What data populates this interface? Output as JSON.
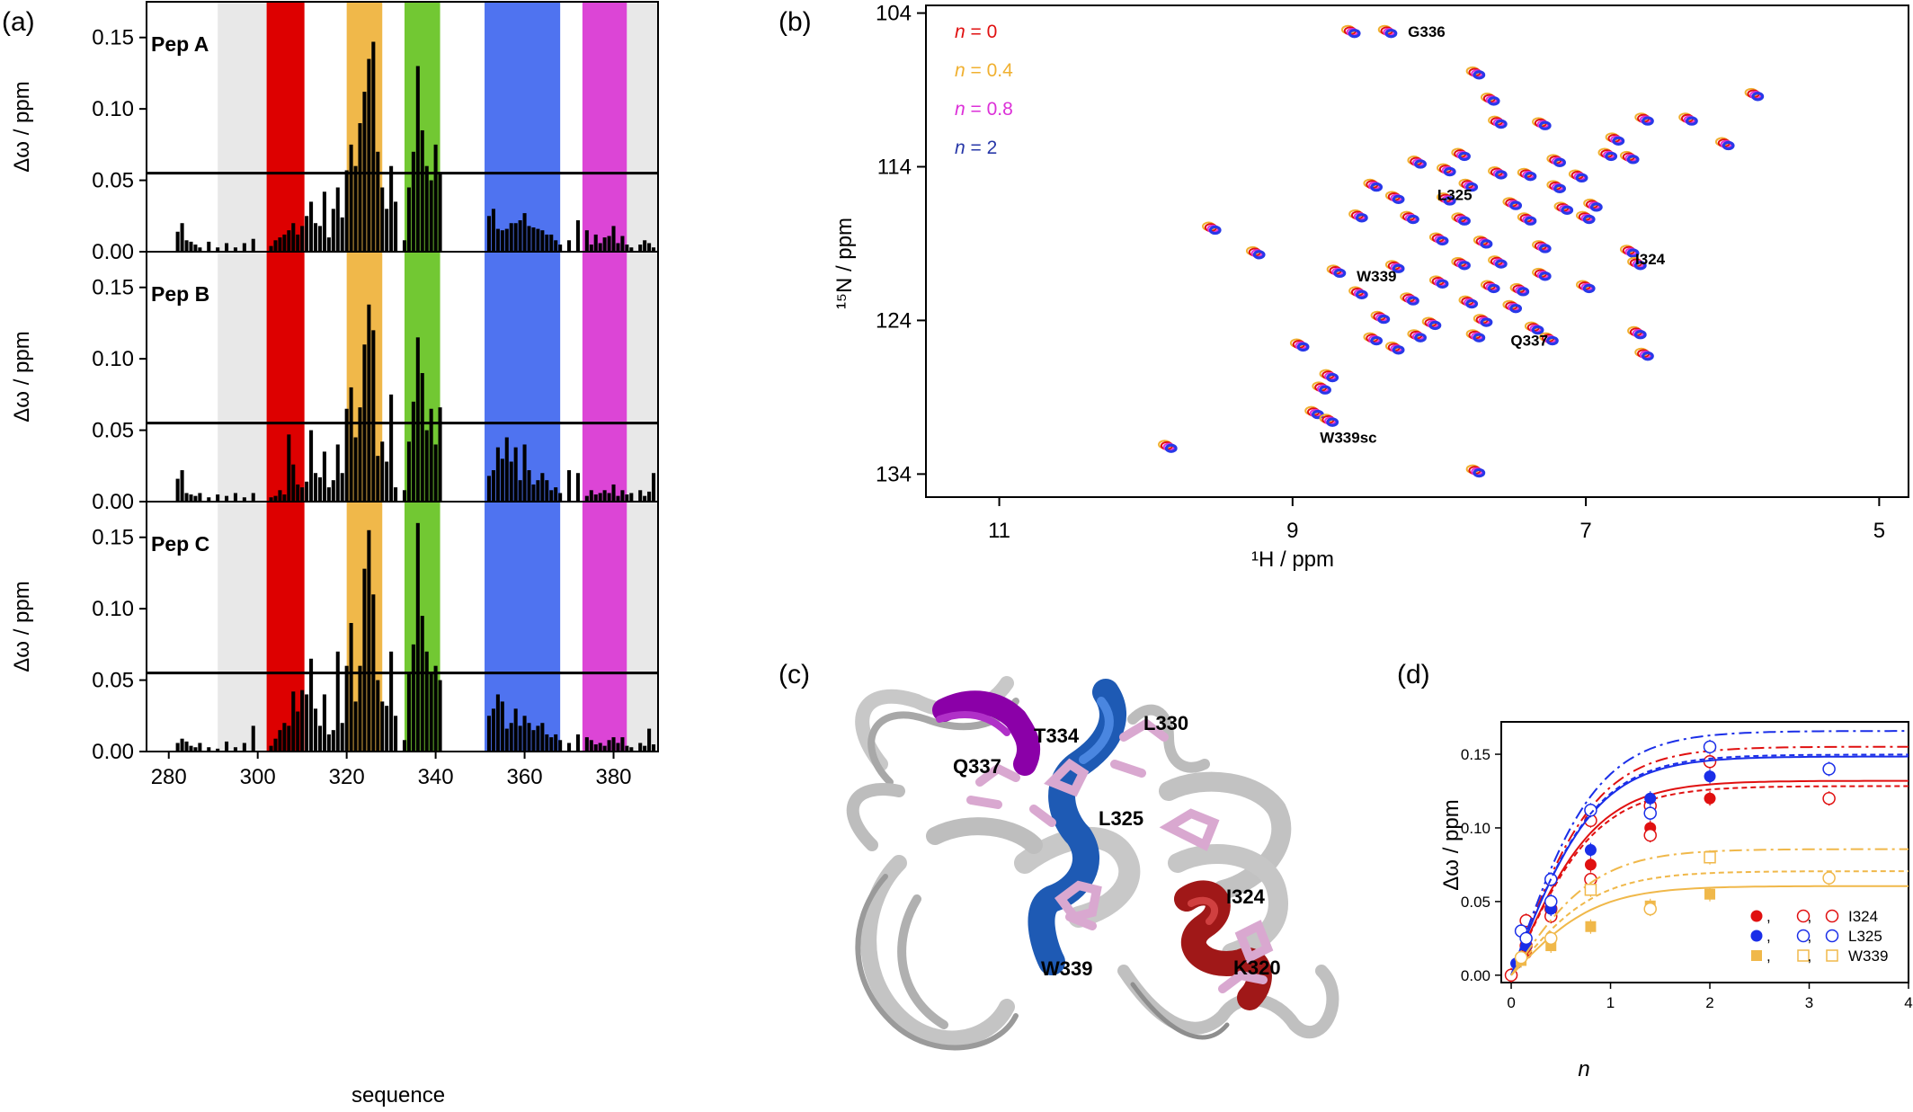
{
  "panels": {
    "a": "(a)",
    "b": "(b)",
    "c": "(c)",
    "d": "(d)"
  },
  "chart_data": [
    {
      "id": "a",
      "type": "bar",
      "xlabel": "sequence",
      "ylabel": "Δω / ppm",
      "xlim": [
        275,
        390
      ],
      "ylim": [
        0,
        0.175
      ],
      "xticks": [
        "280",
        "300",
        "320",
        "340",
        "360",
        "380"
      ],
      "yticks": [
        "0.00",
        "0.05",
        "0.10",
        "0.15"
      ],
      "threshold": 0.055,
      "region_colors": [
        "#e8e8e8",
        "#dd0000",
        "#f0b84a",
        "#72c833",
        "#4f73f0",
        "#dc45d6",
        "#e8e8e8"
      ],
      "regions": [
        [
          291,
          302
        ],
        [
          302,
          310.5
        ],
        [
          320,
          328
        ],
        [
          333,
          341
        ],
        [
          351,
          368
        ],
        [
          373,
          383
        ],
        [
          383,
          390
        ]
      ],
      "x": [
        282,
        283,
        284,
        285,
        286,
        287,
        289,
        291,
        293,
        295,
        297,
        299,
        303,
        304,
        305,
        306,
        307,
        308,
        309,
        310,
        311,
        312,
        313,
        314,
        315,
        316,
        317,
        318,
        319,
        320,
        321,
        322,
        323,
        324,
        325,
        326,
        327,
        328,
        329,
        330,
        331,
        333,
        334,
        335,
        336,
        337,
        338,
        339,
        340,
        341,
        352,
        353,
        354,
        355,
        356,
        357,
        358,
        359,
        360,
        361,
        362,
        363,
        364,
        365,
        366,
        367,
        368,
        370,
        372,
        374,
        375,
        376,
        377,
        378,
        379,
        380,
        381,
        382,
        383,
        384,
        386,
        387,
        388,
        389
      ],
      "subplots": [
        {
          "label": "Pep A",
          "values": [
            0.014,
            0.02,
            0.008,
            0.007,
            0.005,
            0.003,
            0.007,
            0.003,
            0.006,
            0.003,
            0.006,
            0.009,
            0.004,
            0.008,
            0.01,
            0.012,
            0.015,
            0.02,
            0.012,
            0.018,
            0.025,
            0.035,
            0.02,
            0.018,
            0.042,
            0.01,
            0.03,
            0.045,
            0.024,
            0.057,
            0.075,
            0.06,
            0.09,
            0.112,
            0.135,
            0.147,
            0.07,
            0.045,
            0.03,
            0.06,
            0.035,
            0.008,
            0.045,
            0.07,
            0.13,
            0.085,
            0.06,
            0.05,
            0.075,
            0.055,
            0.025,
            0.03,
            0.016,
            0.015,
            0.016,
            0.02,
            0.02,
            0.022,
            0.027,
            0.018,
            0.017,
            0.016,
            0.015,
            0.012,
            0.012,
            0.008,
            0.005,
            0.008,
            0.022,
            0.015,
            0.005,
            0.012,
            0.006,
            0.01,
            0.011,
            0.018,
            0.006,
            0.011,
            0.005,
            0.003,
            0.005,
            0.008,
            0.006,
            0.003
          ]
        },
        {
          "label": "Pep B",
          "values": [
            0.016,
            0.022,
            0.006,
            0.005,
            0.004,
            0.006,
            0.003,
            0.005,
            0.004,
            0.006,
            0.003,
            0.006,
            0.003,
            0.004,
            0.008,
            0.005,
            0.047,
            0.026,
            0.012,
            0.01,
            0.014,
            0.05,
            0.02,
            0.017,
            0.035,
            0.01,
            0.015,
            0.04,
            0.02,
            0.065,
            0.08,
            0.045,
            0.066,
            0.11,
            0.138,
            0.12,
            0.032,
            0.042,
            0.028,
            0.075,
            0.01,
            0.008,
            0.042,
            0.07,
            0.115,
            0.09,
            0.05,
            0.065,
            0.04,
            0.066,
            0.018,
            0.022,
            0.038,
            0.03,
            0.045,
            0.028,
            0.038,
            0.015,
            0.04,
            0.022,
            0.012,
            0.015,
            0.02,
            0.015,
            0.008,
            0.01,
            0.006,
            0.022,
            0.02,
            0.004,
            0.008,
            0.005,
            0.006,
            0.008,
            0.006,
            0.012,
            0.004,
            0.008,
            0.005,
            0.006,
            0.008,
            0.004,
            0.007,
            0.02
          ]
        },
        {
          "label": "Pep C",
          "values": [
            0.006,
            0.009,
            0.007,
            0.004,
            0.003,
            0.006,
            0.003,
            0.002,
            0.007,
            0.003,
            0.006,
            0.018,
            0.004,
            0.009,
            0.015,
            0.02,
            0.018,
            0.042,
            0.028,
            0.043,
            0.04,
            0.065,
            0.03,
            0.018,
            0.04,
            0.012,
            0.015,
            0.07,
            0.02,
            0.06,
            0.09,
            0.035,
            0.06,
            0.128,
            0.155,
            0.11,
            0.05,
            0.035,
            0.032,
            0.07,
            0.025,
            0.008,
            0.055,
            0.075,
            0.16,
            0.095,
            0.07,
            0.055,
            0.06,
            0.05,
            0.025,
            0.03,
            0.04,
            0.035,
            0.016,
            0.02,
            0.03,
            0.018,
            0.025,
            0.02,
            0.015,
            0.018,
            0.02,
            0.012,
            0.01,
            0.012,
            0.008,
            0.006,
            0.012,
            0.01,
            0.008,
            0.005,
            0.006,
            0.004,
            0.008,
            0.01,
            0.006,
            0.01,
            0.004,
            0.003,
            0.006,
            0.004,
            0.016,
            0.005
          ]
        }
      ]
    },
    {
      "id": "b",
      "type": "scatter",
      "xlabel": "¹H / ppm",
      "ylabel": "¹⁵N / ppm",
      "xlim": [
        11.5,
        4.8
      ],
      "ylim": [
        135.5,
        103.5
      ],
      "xticks": [
        "11",
        "9",
        "7",
        "5"
      ],
      "yticks": [
        "104",
        "114",
        "124",
        "134"
      ],
      "legend": [
        {
          "n": "n",
          "value": " = 0",
          "color": "#e01010"
        },
        {
          "n": "n",
          "value": " = 0.4",
          "color": "#f0b030"
        },
        {
          "n": "n",
          "value": " = 0.8",
          "color": "#dc30d8"
        },
        {
          "n": "n",
          "value": " = 2",
          "color": "#2838a8"
        }
      ],
      "series_colors": [
        "#f0b030",
        "#e01010",
        "#dc30d8",
        "#2838e8"
      ],
      "labels": [
        {
          "text": "G336",
          "h": 8.25,
          "n": 105.2
        },
        {
          "text": "L325",
          "h": 8.05,
          "n": 115.8
        },
        {
          "text": "I324",
          "h": 6.7,
          "n": 120.0
        },
        {
          "text": "W339",
          "h": 8.6,
          "n": 121.1
        },
        {
          "text": "Q337",
          "h": 7.55,
          "n": 125.3
        },
        {
          "text": "W339sc",
          "h": 8.85,
          "n": 131.6
        }
      ],
      "peaks": [
        [
          8.35,
          105.2
        ],
        [
          8.6,
          105.2
        ],
        [
          7.75,
          107.9
        ],
        [
          5.85,
          109.3
        ],
        [
          7.65,
          109.6
        ],
        [
          7.6,
          111.1
        ],
        [
          7.3,
          111.2
        ],
        [
          6.6,
          110.9
        ],
        [
          6.3,
          110.9
        ],
        [
          6.8,
          112.2
        ],
        [
          6.05,
          112.5
        ],
        [
          7.85,
          113.2
        ],
        [
          7.2,
          113.6
        ],
        [
          6.85,
          113.2
        ],
        [
          6.7,
          113.4
        ],
        [
          8.15,
          113.7
        ],
        [
          7.95,
          114.2
        ],
        [
          7.6,
          114.4
        ],
        [
          7.4,
          114.5
        ],
        [
          7.05,
          114.6
        ],
        [
          8.45,
          115.2
        ],
        [
          7.8,
          115.2
        ],
        [
          7.2,
          115.3
        ],
        [
          8.3,
          116.0
        ],
        [
          7.95,
          116.1
        ],
        [
          7.5,
          116.4
        ],
        [
          7.15,
          116.7
        ],
        [
          6.95,
          116.5
        ],
        [
          8.55,
          117.2
        ],
        [
          8.2,
          117.3
        ],
        [
          7.85,
          117.4
        ],
        [
          7.4,
          117.4
        ],
        [
          7.0,
          117.3
        ],
        [
          8.0,
          118.7
        ],
        [
          7.7,
          118.9
        ],
        [
          7.3,
          119.2
        ],
        [
          6.7,
          119.5
        ],
        [
          6.65,
          120.3
        ],
        [
          9.55,
          118.0
        ],
        [
          9.25,
          119.6
        ],
        [
          8.7,
          120.8
        ],
        [
          8.3,
          120.5
        ],
        [
          7.85,
          120.3
        ],
        [
          7.6,
          120.2
        ],
        [
          7.3,
          121.0
        ],
        [
          8.0,
          121.5
        ],
        [
          7.65,
          121.8
        ],
        [
          7.45,
          122.0
        ],
        [
          7.0,
          121.8
        ],
        [
          8.55,
          122.2
        ],
        [
          8.2,
          122.6
        ],
        [
          7.8,
          122.8
        ],
        [
          7.5,
          123.1
        ],
        [
          8.4,
          123.8
        ],
        [
          8.05,
          124.2
        ],
        [
          7.7,
          124.0
        ],
        [
          7.35,
          124.5
        ],
        [
          8.15,
          125.0
        ],
        [
          7.75,
          125.0
        ],
        [
          8.45,
          125.2
        ],
        [
          7.25,
          125.2
        ],
        [
          6.65,
          124.8
        ],
        [
          8.3,
          125.8
        ],
        [
          8.95,
          125.6
        ],
        [
          6.6,
          126.2
        ],
        [
          8.75,
          127.6
        ],
        [
          8.8,
          128.4
        ],
        [
          8.85,
          130.0
        ],
        [
          8.75,
          130.5
        ],
        [
          9.85,
          132.2
        ],
        [
          7.75,
          133.8
        ]
      ]
    },
    {
      "id": "c",
      "type": "other",
      "residues": [
        "T334",
        "L330",
        "Q337",
        "L325",
        "I324",
        "K320",
        "W339"
      ]
    },
    {
      "id": "d",
      "type": "scatter",
      "xlabel": "n",
      "ylabel": "Δω / ppm",
      "xlim": [
        -0.1,
        4
      ],
      "ylim": [
        -0.005,
        0.172
      ],
      "xticks": [
        "0",
        "1",
        "2",
        "3",
        "4"
      ],
      "yticks": [
        "0.00",
        "0.05",
        "0.10",
        "0.15"
      ],
      "legend": [
        {
          "markers": ", ,",
          "label": "I324",
          "color": "#e01010"
        },
        {
          "markers": ", ,",
          "label": "L325",
          "color": "#1a2ee8"
        },
        {
          "markers": ", ,",
          "label": "W339",
          "color": "#f0b84a"
        }
      ],
      "series": [
        {
          "name": "I324",
          "color": "#e01010",
          "marker": "filled-circle",
          "x": [
            0,
            0.15,
            0.4,
            0.8,
            1.4,
            2.0
          ],
          "y": [
            0.0,
            0.015,
            0.045,
            0.075,
            0.1,
            0.12
          ]
        },
        {
          "name": "I324",
          "color": "#e01010",
          "marker": "open-circle",
          "x": [
            0,
            0.15,
            0.4,
            0.8,
            1.4,
            2.0
          ],
          "y": [
            0.0,
            0.037,
            0.045,
            0.105,
            0.115,
            0.145
          ]
        },
        {
          "name": "I324",
          "color": "#e01010",
          "marker": "open-diamond",
          "x": [
            0.15,
            0.4,
            0.8,
            1.4,
            3.2
          ],
          "y": [
            0.02,
            0.04,
            0.065,
            0.095,
            0.12
          ]
        },
        {
          "name": "L325",
          "color": "#1a2ee8",
          "marker": "filled-circle",
          "x": [
            0.05,
            0.15,
            0.4,
            0.8,
            1.4,
            2.0
          ],
          "y": [
            0.008,
            0.02,
            0.045,
            0.085,
            0.12,
            0.135
          ]
        },
        {
          "name": "L325",
          "color": "#1a2ee8",
          "marker": "open-circle",
          "x": [
            0.1,
            0.4,
            0.8,
            2.0
          ],
          "y": [
            0.03,
            0.065,
            0.112,
            0.155
          ]
        },
        {
          "name": "L325",
          "color": "#1a2ee8",
          "marker": "open-diamond",
          "x": [
            0.15,
            0.4,
            1.4,
            3.2
          ],
          "y": [
            0.025,
            0.05,
            0.11,
            0.14
          ]
        },
        {
          "name": "W339",
          "color": "#f0b84a",
          "marker": "filled-square",
          "x": [
            0.1,
            0.4,
            0.8,
            1.4,
            2.0
          ],
          "y": [
            0.01,
            0.02,
            0.033,
            0.047,
            0.055
          ]
        },
        {
          "name": "W339",
          "color": "#f0b84a",
          "marker": "open-square",
          "x": [
            0.8,
            2.0
          ],
          "y": [
            0.058,
            0.08
          ]
        },
        {
          "name": "W339",
          "color": "#f0b84a",
          "marker": "open-diamond",
          "x": [
            0.1,
            0.4,
            1.4,
            3.2
          ],
          "y": [
            0.012,
            0.025,
            0.045,
            0.066
          ]
        }
      ]
    }
  ]
}
